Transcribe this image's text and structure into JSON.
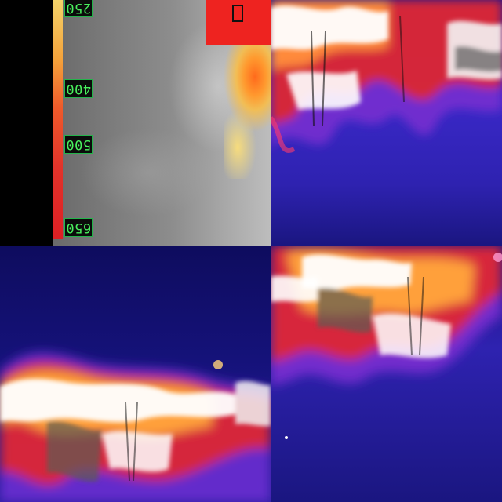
{
  "scale": {
    "labels": [
      "250",
      "400",
      "500",
      "650"
    ]
  },
  "colors": {
    "background": "#000000",
    "thermal_dark": "#14125a",
    "thermal_mid": "#5a2fd0",
    "thermal_hot": "#e2262a",
    "thermal_white": "#ffffff",
    "scale_label_text": "#49f05d"
  },
  "panels": {
    "top_left": "grayscale-view-with-temperature-scale",
    "top_right": "false-color-thermal-view",
    "bottom_left": "false-color-thermal-view",
    "bottom_right": "false-color-thermal-view"
  }
}
